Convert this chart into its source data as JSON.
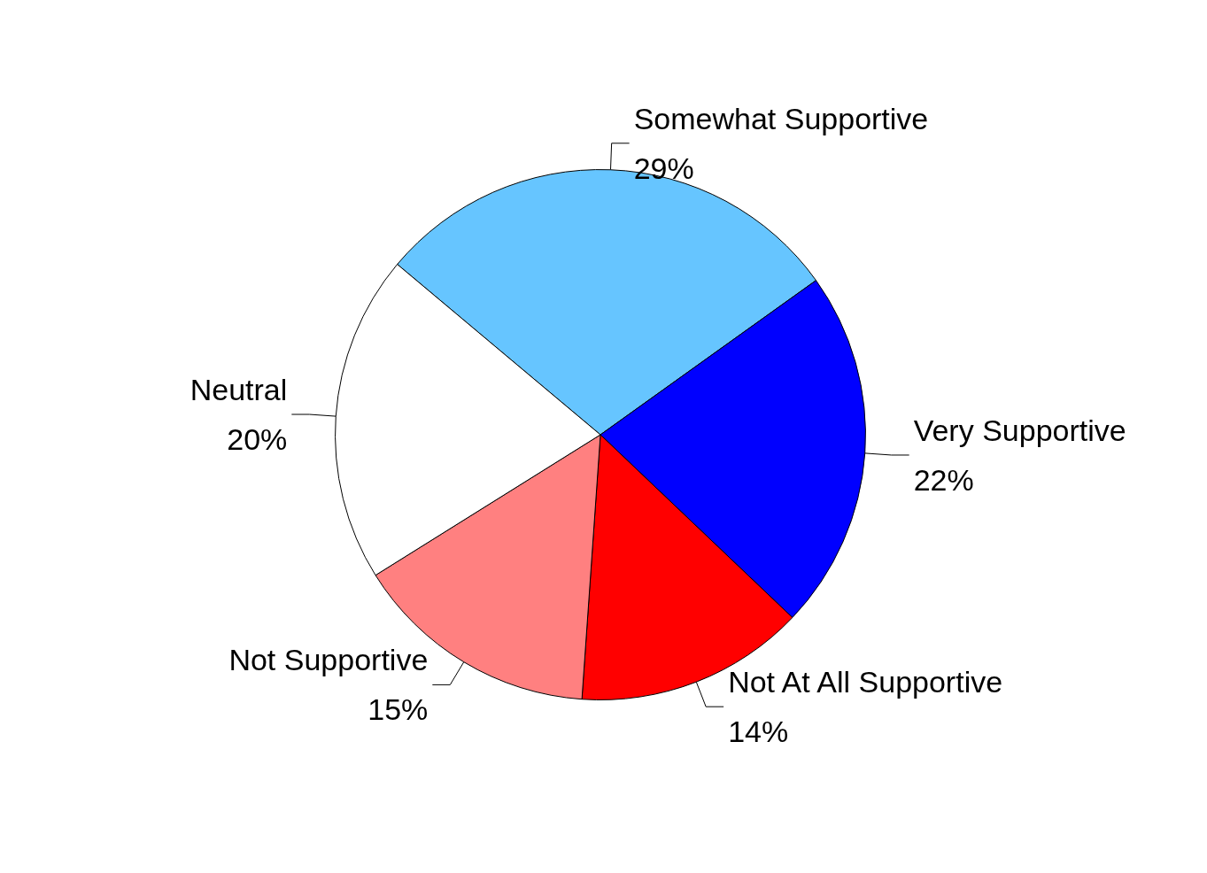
{
  "chart_data": {
    "type": "pie",
    "categories": [
      "Somewhat Supportive",
      "Very Supportive",
      "Not At All Supportive",
      "Not Supportive",
      "Neutral"
    ],
    "values": [
      29,
      22,
      14,
      15,
      20
    ],
    "colors": [
      "#66c5ff",
      "#0000ff",
      "#ff0000",
      "#ff8080",
      "#ffffff"
    ],
    "value_labels": [
      "29%",
      "22%",
      "14%",
      "15%",
      "20%"
    ],
    "legend": false
  }
}
